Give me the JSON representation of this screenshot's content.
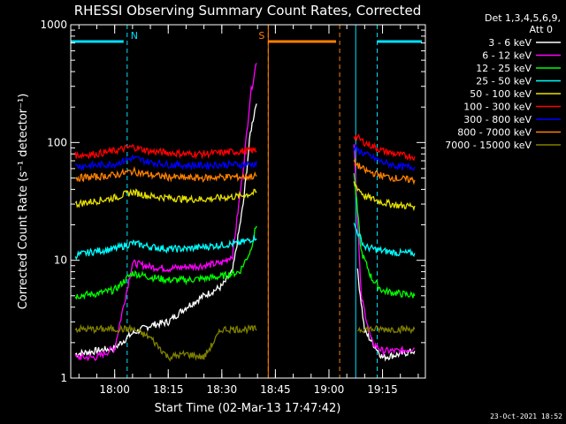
{
  "chart_data": {
    "type": "line",
    "title": "RHESSI Observing Summary Count Rates, Corrected",
    "xlabel": "Start Time (02-Mar-13 17:47:42)",
    "ylabel": "Corrected Count Rate (s⁻¹ detector⁻¹)",
    "yscale": "log",
    "ylim": [
      1,
      1000
    ],
    "xlim": [
      "17:47:42",
      "19:27:00"
    ],
    "x_ticks": [
      "18:00",
      "18:15",
      "18:30",
      "18:45",
      "19:00",
      "19:15"
    ],
    "y_ticks": [
      "1",
      "10",
      "100",
      "1000"
    ],
    "legend_title": [
      "Det 1,3,4,5,6,9,",
      "Att 0"
    ],
    "legend_position": "right",
    "grid": false,
    "series": [
      {
        "name": "3 - 6 keV",
        "color": "#ffffff",
        "x": [
          "17:49",
          "18:00",
          "18:05",
          "18:10",
          "18:15",
          "18:20",
          "18:25",
          "18:30",
          "18:33",
          "18:36",
          "18:38",
          "18:40",
          "19:08",
          "19:10",
          "19:15",
          "19:20",
          "19:24"
        ],
        "values": [
          1.6,
          1.8,
          2.4,
          2.8,
          3.0,
          4.0,
          5.0,
          6.0,
          8.0,
          30,
          120,
          250,
          8.0,
          2.5,
          1.5,
          1.6,
          1.7
        ]
      },
      {
        "name": "6 - 12 keV",
        "color": "#ff00ff",
        "x": [
          "17:49",
          "17:55",
          "18:00",
          "18:05",
          "18:10",
          "18:15",
          "18:20",
          "18:25",
          "18:30",
          "18:33",
          "18:36",
          "18:38",
          "18:40",
          "19:07",
          "19:09",
          "19:12",
          "19:15",
          "19:20",
          "19:24"
        ],
        "values": [
          1.5,
          1.5,
          1.8,
          9.5,
          8.8,
          8.5,
          8.8,
          9.0,
          9.5,
          11,
          60,
          250,
          550,
          100,
          5.0,
          2.0,
          1.7,
          1.7,
          1.8
        ]
      },
      {
        "name": "12 - 25 keV",
        "color": "#00ff00",
        "x": [
          "17:49",
          "17:55",
          "18:00",
          "18:05",
          "18:10",
          "18:15",
          "18:20",
          "18:25",
          "18:30",
          "18:35",
          "18:38",
          "18:40",
          "19:07",
          "19:09",
          "19:12",
          "19:15",
          "19:20",
          "19:24"
        ],
        "values": [
          5.0,
          5.2,
          5.6,
          7.8,
          7.2,
          6.8,
          6.8,
          7.0,
          7.3,
          8.0,
          12,
          22,
          55,
          12,
          7.0,
          5.5,
          5.2,
          5.0
        ]
      },
      {
        "name": "25 - 50 keV",
        "color": "#00ffff",
        "x": [
          "17:49",
          "17:55",
          "18:00",
          "18:05",
          "18:10",
          "18:15",
          "18:20",
          "18:25",
          "18:30",
          "18:35",
          "18:38",
          "18:40",
          "19:07",
          "19:10",
          "19:15",
          "19:20",
          "19:24"
        ],
        "values": [
          11,
          12,
          12.5,
          14,
          13,
          12.5,
          12.5,
          13,
          13.5,
          14,
          15,
          16,
          20,
          13,
          12,
          11.5,
          11.5
        ]
      },
      {
        "name": "50 - 100 keV",
        "color": "#e8e000",
        "x": [
          "17:49",
          "17:55",
          "18:00",
          "18:05",
          "18:10",
          "18:15",
          "18:20",
          "18:25",
          "18:30",
          "18:35",
          "18:40",
          "19:07",
          "19:10",
          "19:15",
          "19:20",
          "19:24"
        ],
        "values": [
          30,
          32,
          34,
          38,
          35,
          34,
          33,
          33,
          34,
          35,
          38,
          45,
          35,
          31,
          29,
          29
        ]
      },
      {
        "name": "100 - 300 keV",
        "color": "#ff0000",
        "x": [
          "17:49",
          "17:55",
          "18:00",
          "18:05",
          "18:10",
          "18:15",
          "18:20",
          "18:25",
          "18:30",
          "18:35",
          "18:40",
          "19:07",
          "19:10",
          "19:15",
          "19:20",
          "19:24"
        ],
        "values": [
          78,
          80,
          85,
          92,
          84,
          82,
          80,
          80,
          82,
          84,
          86,
          115,
          100,
          85,
          78,
          76
        ]
      },
      {
        "name": "300 - 800 keV",
        "color": "#0000ff",
        "x": [
          "17:49",
          "17:55",
          "18:00",
          "18:05",
          "18:10",
          "18:15",
          "18:20",
          "18:25",
          "18:30",
          "18:35",
          "18:40",
          "19:07",
          "19:10",
          "19:15",
          "19:20",
          "19:24"
        ],
        "values": [
          63,
          64,
          66,
          74,
          68,
          65,
          64,
          64,
          65,
          65,
          66,
          90,
          80,
          68,
          62,
          62
        ]
      },
      {
        "name": "800 - 7000 keV",
        "color": "#ff8000",
        "x": [
          "17:49",
          "17:55",
          "18:00",
          "18:05",
          "18:10",
          "18:15",
          "18:20",
          "18:25",
          "18:30",
          "18:35",
          "18:40",
          "19:07",
          "19:10",
          "19:15",
          "19:20",
          "19:24"
        ],
        "values": [
          50,
          51,
          53,
          57,
          53,
          51,
          50,
          50,
          51,
          51,
          52,
          68,
          58,
          52,
          49,
          48
        ]
      },
      {
        "name": "7000 - 15000 keV",
        "color": "#808000",
        "x": [
          "17:49",
          "17:55",
          "18:00",
          "18:05",
          "18:10",
          "18:15",
          "18:20",
          "18:25",
          "18:30",
          "18:35",
          "18:40",
          "19:08",
          "19:12",
          "19:16",
          "19:20",
          "19:24"
        ],
        "values": [
          2.6,
          2.6,
          2.6,
          2.6,
          2.2,
          1.5,
          1.6,
          1.5,
          2.6,
          2.6,
          2.6,
          2.6,
          2.6,
          2.6,
          2.6,
          2.6
        ]
      }
    ],
    "annotations": [
      {
        "label": "N",
        "color": "#00e0ff",
        "type": "night",
        "intervals": [
          [
            "17:47:42",
            "18:03:30"
          ],
          [
            "19:13:30",
            "19:27:00"
          ]
        ],
        "boundaries": [
          "18:03:30",
          "19:13:30"
        ],
        "label_at": "18:03:30"
      },
      {
        "label": "S",
        "color": "#ff8000",
        "type": "saa",
        "intervals": [
          [
            "18:43:00",
            "19:03:00"
          ]
        ],
        "boundaries": [
          "18:43:00",
          "19:03:00"
        ],
        "label_at": "18:43:00"
      }
    ],
    "attenuator_boundaries": [
      "17:47:42",
      "18:43:00",
      "19:07:30"
    ]
  },
  "timestamp": "23-Oct-2021 18:52"
}
